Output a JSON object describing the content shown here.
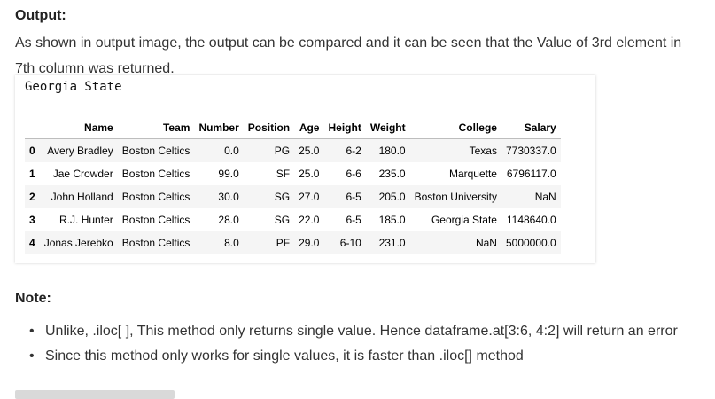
{
  "output_heading": "Output:",
  "output_paragraph": "As shown in output image, the output can be compared and it can be seen that the Value of 3rd element in 7th column was returned.",
  "code_output": "Georgia State",
  "table": {
    "columns": [
      "",
      "Name",
      "Team",
      "Number",
      "Position",
      "Age",
      "Height",
      "Weight",
      "College",
      "Salary"
    ],
    "rows": [
      [
        "0",
        "Avery Bradley",
        "Boston Celtics",
        "0.0",
        "PG",
        "25.0",
        "6-2",
        "180.0",
        "Texas",
        "7730337.0"
      ],
      [
        "1",
        "Jae Crowder",
        "Boston Celtics",
        "99.0",
        "SF",
        "25.0",
        "6-6",
        "235.0",
        "Marquette",
        "6796117.0"
      ],
      [
        "2",
        "John Holland",
        "Boston Celtics",
        "30.0",
        "SG",
        "27.0",
        "6-5",
        "205.0",
        "Boston University",
        "NaN"
      ],
      [
        "3",
        "R.J. Hunter",
        "Boston Celtics",
        "28.0",
        "SG",
        "22.0",
        "6-5",
        "185.0",
        "Georgia State",
        "1148640.0"
      ],
      [
        "4",
        "Jonas Jerebko",
        "Boston Celtics",
        "8.0",
        "PF",
        "29.0",
        "6-10",
        "231.0",
        "NaN",
        "5000000.0"
      ]
    ]
  },
  "note_heading": "Note:",
  "notes": [
    "Unlike, .iloc[ ], This method only returns single value. Hence dataframe.at[3:6, 4:2] will return an error",
    "Since this method only works for single values, it is faster than .iloc[] method"
  ],
  "bullet_glyph": "•"
}
